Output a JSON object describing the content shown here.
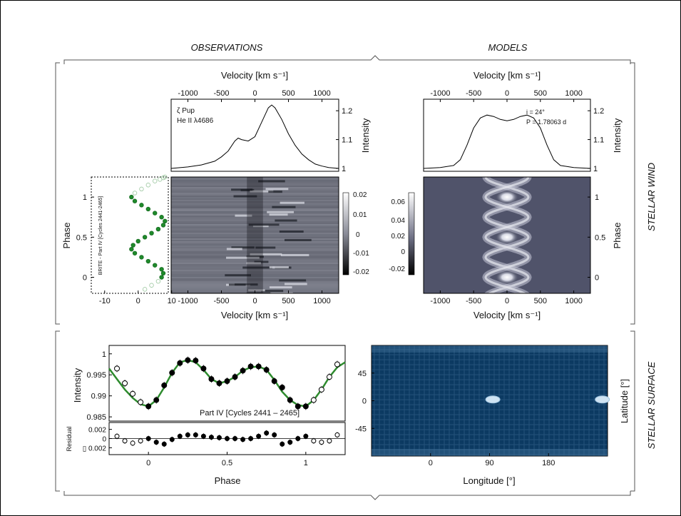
{
  "headers": {
    "observations": "OBSERVATIONS",
    "models": "MODELS",
    "stellar_wind": "STELLAR WIND",
    "stellar_surface": "STELLAR SURFACE"
  },
  "chart_data": [
    {
      "id": "obs_profile",
      "type": "line",
      "xlabel": "Velocity [km s⁻¹]",
      "ylabel": "Intensity",
      "xlim": [
        -1250,
        1250
      ],
      "ylim": [
        0.99,
        1.24
      ],
      "xticks": [
        -1000,
        -500,
        0,
        500,
        1000
      ],
      "yticks": [
        1,
        1.1,
        1.2
      ],
      "annotations": [
        "ζ Pup",
        "He II λ4686"
      ],
      "x": [
        -1250,
        -1000,
        -800,
        -600,
        -500,
        -400,
        -300,
        -250,
        -200,
        -100,
        0,
        100,
        200,
        250,
        300,
        400,
        500,
        600,
        700,
        800,
        900,
        1000,
        1100,
        1250
      ],
      "y": [
        1.0,
        1.005,
        1.012,
        1.025,
        1.04,
        1.06,
        1.095,
        1.105,
        1.1,
        1.095,
        1.11,
        1.16,
        1.21,
        1.22,
        1.21,
        1.17,
        1.12,
        1.08,
        1.05,
        1.03,
        1.015,
        1.008,
        1.003,
        1.0
      ]
    },
    {
      "id": "model_profile",
      "type": "line",
      "xlabel": "Velocity [km s⁻¹]",
      "ylabel": "Intensity",
      "xlim": [
        -1250,
        1250
      ],
      "ylim": [
        0.99,
        1.24
      ],
      "xticks": [
        -1000,
        -500,
        0,
        500,
        1000
      ],
      "yticks": [
        1,
        1.1,
        1.2
      ],
      "annotations": [
        "i = 24°",
        "P = 1.78063 d"
      ],
      "x": [
        -1250,
        -1000,
        -800,
        -700,
        -600,
        -500,
        -400,
        -300,
        -200,
        -100,
        0,
        100,
        200,
        300,
        400,
        500,
        600,
        700,
        800,
        1000,
        1250
      ],
      "y": [
        1.0,
        1.003,
        1.01,
        1.03,
        1.08,
        1.14,
        1.175,
        1.185,
        1.18,
        1.17,
        1.165,
        1.17,
        1.18,
        1.185,
        1.175,
        1.14,
        1.08,
        1.03,
        1.01,
        1.003,
        1.0
      ]
    },
    {
      "id": "obs_dynamic",
      "type": "heatmap",
      "xlabel": "Velocity [km s⁻¹]",
      "xlim": [
        -1250,
        1250
      ],
      "xticks": [
        -1000,
        -500,
        0,
        500,
        1000
      ],
      "ylim": [
        -0.2,
        1.25
      ],
      "colorbar_ticks": [
        "0.02",
        "0.01",
        "0",
        "-0.01",
        "-0.02"
      ]
    },
    {
      "id": "model_dynamic",
      "type": "heatmap",
      "xlabel": "Velocity [km s⁻¹]",
      "ylabel": "Phase",
      "xlim": [
        -1250,
        1250
      ],
      "xticks": [
        -1000,
        -500,
        0,
        500,
        1000
      ],
      "ylim": [
        -0.2,
        1.25
      ],
      "yticks": [
        0,
        0.5,
        1
      ],
      "colorbar_ticks": [
        "0.06",
        "0.04",
        "0.02",
        "0",
        "-0.02"
      ]
    },
    {
      "id": "brite_phase",
      "type": "scatter",
      "ylabel": "Phase",
      "annotation": "BRITE - Part IV [Cycles 2441-2465]",
      "xlim": [
        -14,
        9
      ],
      "ylim": [
        -0.2,
        1.25
      ],
      "xticks": [
        -10,
        0,
        10
      ],
      "yticks": [
        0,
        0.5,
        1
      ],
      "x": [
        2,
        4,
        6,
        7,
        7.5,
        7,
        5,
        3,
        1,
        -1,
        -2,
        -1.5,
        0,
        2,
        4,
        6,
        7.5,
        8,
        7,
        5,
        3,
        1,
        -1,
        -2,
        -1,
        1,
        3,
        5,
        6.5,
        7.5,
        8
      ],
      "y": [
        -0.15,
        -0.1,
        -0.05,
        0.0,
        0.05,
        0.1,
        0.15,
        0.2,
        0.25,
        0.3,
        0.35,
        0.4,
        0.45,
        0.5,
        0.55,
        0.6,
        0.65,
        0.7,
        0.75,
        0.8,
        0.85,
        0.9,
        0.95,
        1.0,
        1.05,
        1.1,
        1.15,
        1.2,
        1.22,
        1.24,
        1.25
      ]
    },
    {
      "id": "light_curve",
      "type": "scatter",
      "ylabel": "Intensity",
      "annotation": "Part IV [Cycles 2441 – 2465]",
      "xlim": [
        -0.25,
        1.25
      ],
      "ylim": [
        0.984,
        1.002
      ],
      "yticks": [
        0.985,
        0.99,
        0.995,
        1
      ],
      "x": [
        -0.2,
        -0.15,
        -0.1,
        -0.05,
        0,
        0.05,
        0.1,
        0.15,
        0.2,
        0.25,
        0.3,
        0.35,
        0.4,
        0.45,
        0.5,
        0.55,
        0.6,
        0.65,
        0.7,
        0.75,
        0.8,
        0.85,
        0.9,
        0.95,
        1.0,
        1.05,
        1.1,
        1.15,
        1.2
      ],
      "y": [
        0.9965,
        0.993,
        0.9905,
        0.9885,
        0.9875,
        0.989,
        0.9925,
        0.9955,
        0.9978,
        0.9985,
        0.9984,
        0.9965,
        0.994,
        0.993,
        0.9935,
        0.9945,
        0.996,
        0.997,
        0.997,
        0.9962,
        0.9935,
        0.992,
        0.989,
        0.9875,
        0.9875,
        0.989,
        0.9915,
        0.9945,
        0.9975
      ],
      "model_x": [
        -0.25,
        -0.2,
        -0.15,
        -0.1,
        -0.05,
        0,
        0.05,
        0.1,
        0.15,
        0.2,
        0.25,
        0.3,
        0.35,
        0.4,
        0.45,
        0.5,
        0.55,
        0.6,
        0.65,
        0.7,
        0.75,
        0.8,
        0.85,
        0.9,
        0.95,
        1.0,
        1.05,
        1.1,
        1.15,
        1.2,
        1.25
      ],
      "model_y": [
        0.9965,
        0.994,
        0.9915,
        0.9895,
        0.988,
        0.9875,
        0.989,
        0.992,
        0.9955,
        0.998,
        0.9985,
        0.998,
        0.9962,
        0.994,
        0.993,
        0.9935,
        0.9945,
        0.996,
        0.9968,
        0.997,
        0.9962,
        0.9938,
        0.991,
        0.989,
        0.9878,
        0.9875,
        0.989,
        0.9915,
        0.9945,
        0.9968,
        0.998
      ]
    },
    {
      "id": "residual",
      "type": "scatter",
      "xlabel": "Phase",
      "ylabel": "Residual",
      "xlim": [
        -0.25,
        1.25
      ],
      "ylim": [
        -0.0035,
        0.0035
      ],
      "xticks": [
        0,
        0.5,
        1
      ],
      "yticks": [
        0.002,
        0,
        -0.002
      ],
      "ytick_labels": [
        "0.002",
        "0",
        "▯ 0.002"
      ],
      "x": [
        -0.2,
        -0.15,
        -0.1,
        -0.05,
        0,
        0.05,
        0.1,
        0.15,
        0.2,
        0.25,
        0.3,
        0.35,
        0.4,
        0.45,
        0.5,
        0.55,
        0.6,
        0.65,
        0.7,
        0.75,
        0.8,
        0.85,
        0.9,
        0.95,
        1.0,
        1.05,
        1.1,
        1.15,
        1.2
      ],
      "y": [
        0.0005,
        -0.0005,
        -0.001,
        -0.0005,
        0.0,
        -0.0008,
        -0.0012,
        -0.0002,
        0.0005,
        0.0008,
        0.0008,
        0.0005,
        0.0003,
        0.0002,
        0.0,
        0.0,
        -0.0002,
        0.0,
        0.0005,
        0.0012,
        0.0008,
        -0.0012,
        -0.0008,
        0.0,
        0.0005,
        -0.0005,
        -0.0008,
        -0.0005,
        0.0008
      ]
    },
    {
      "id": "surface_map",
      "type": "heatmap",
      "xlabel": "Longitude [°]",
      "ylabel": "Latitude [°]",
      "xticks": [
        0,
        90,
        180
      ],
      "yticks": [
        45,
        0,
        -45
      ],
      "xlim": [
        -90,
        270
      ],
      "ylim": [
        -90,
        90
      ],
      "spots": [
        {
          "lon": 95,
          "lat": 2
        },
        {
          "lon": 262,
          "lat": 2
        }
      ]
    }
  ]
}
